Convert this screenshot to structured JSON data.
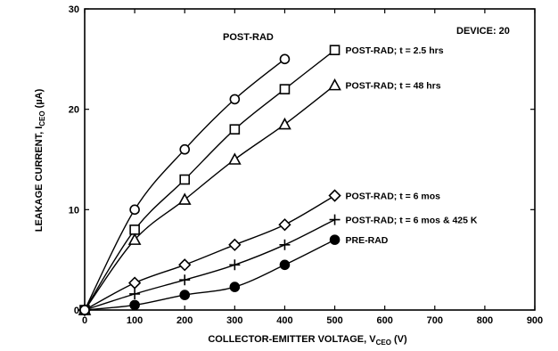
{
  "chart_data": {
    "type": "scatter",
    "title": "",
    "xlabel": "COLLECTOR-EMITTER VOLTAGE, V",
    "xlabel_sub": "CEO",
    "xlabel_unit": " (V)",
    "ylabel": "LEAKAGE CURRENT, I",
    "ylabel_sub": "CEO",
    "ylabel_unit": " (µA)",
    "xlim": [
      0,
      900
    ],
    "ylim": [
      0,
      30
    ],
    "xticks": [
      0,
      100,
      200,
      300,
      400,
      500,
      600,
      700,
      800,
      900
    ],
    "yticks": [
      0,
      10,
      20,
      30
    ],
    "grid": false,
    "legend_position": "right",
    "annotations": [
      {
        "text": "POST-RAD"
      },
      {
        "text": "DEVICE: 20"
      }
    ],
    "series": [
      {
        "name": "POST-RAD; t = 2.5 hrs",
        "marker": "square",
        "x": [
          0,
          100,
          200,
          300,
          400
        ],
        "y": [
          0,
          8,
          13,
          18,
          22
        ],
        "line_x": [
          0,
          100,
          200,
          300,
          400,
          500
        ],
        "line_y": [
          0,
          8,
          13,
          18,
          22,
          25.9
        ]
      },
      {
        "name": "POST-RAD; t = 48 hrs",
        "marker": "triangle",
        "x": [
          0,
          100,
          200,
          300,
          400
        ],
        "y": [
          0,
          7,
          11,
          15,
          18.5
        ],
        "line_x": [
          0,
          100,
          200,
          300,
          400,
          500
        ],
        "line_y": [
          0,
          7,
          11,
          15,
          18.5,
          22.4
        ]
      },
      {
        "name": "POST-RAD; t = 6 mos",
        "marker": "diamond",
        "x": [
          0,
          100,
          200,
          300,
          400
        ],
        "y": [
          0,
          2.7,
          4.5,
          6.5,
          8.5
        ],
        "line_x": [
          0,
          100,
          200,
          300,
          400,
          500
        ],
        "line_y": [
          0,
          2.7,
          4.5,
          6.5,
          8.5,
          11.4
        ]
      },
      {
        "name": "POST-RAD; t = 6 mos & 425 K",
        "marker": "plus",
        "x": [
          0,
          100,
          200,
          300,
          400
        ],
        "y": [
          0,
          1.6,
          3.0,
          4.5,
          6.5
        ],
        "line_x": [
          0,
          100,
          200,
          300,
          400,
          500
        ],
        "line_y": [
          0,
          1.6,
          3.0,
          4.5,
          6.5,
          9.0
        ]
      },
      {
        "name": "PRE-RAD",
        "marker": "filled-circle",
        "x": [
          0,
          100,
          200,
          300,
          400
        ],
        "y": [
          0,
          0.5,
          1.5,
          2.3,
          4.5
        ],
        "line_x": [
          0,
          100,
          200,
          300,
          400,
          500
        ],
        "line_y": [
          0,
          0.5,
          1.5,
          2.3,
          4.5,
          7.0
        ]
      },
      {
        "name": "",
        "marker": "circle",
        "x": [
          0,
          100,
          200,
          300,
          400
        ],
        "y": [
          0,
          10,
          16,
          21,
          25
        ],
        "line_x": [
          0,
          100,
          200,
          300,
          400
        ],
        "line_y": [
          0,
          10,
          16,
          21,
          25
        ]
      }
    ]
  }
}
